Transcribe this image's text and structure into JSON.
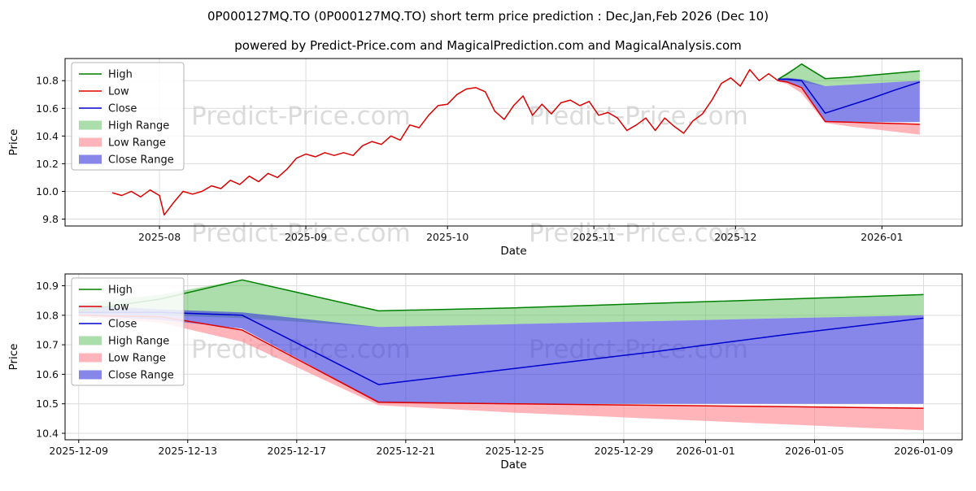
{
  "title": "0P000127MQ.TO (0P000127MQ.TO) short term price prediction : Dec,Jan,Feb 2026 (Dec 10)",
  "subtitle": "powered by Predict-Price.com and MagicalPrediction.com and MagicalAnalysis.com",
  "watermark": "Predict-Price.com",
  "colors": {
    "high_line": "#008000",
    "low_line": "#dd0000",
    "close_line": "#0000cd",
    "high_band": "rgba(90,190,90,0.5)",
    "low_band": "rgba(255,130,140,0.6)",
    "close_band": "rgba(55,55,220,0.6)",
    "grid": "#dcdcdc",
    "watermark": "#bdbdbd"
  },
  "legend": [
    {
      "label": "High",
      "type": "line",
      "color": "#008000"
    },
    {
      "label": "Low",
      "type": "line",
      "color": "#dd0000"
    },
    {
      "label": "Close",
      "type": "line",
      "color": "#0000cd"
    },
    {
      "label": "High Range",
      "type": "band",
      "color": "rgba(90,190,90,0.5)"
    },
    {
      "label": "Low Range",
      "type": "band",
      "color": "rgba(255,130,140,0.6)"
    },
    {
      "label": "Close Range",
      "type": "band",
      "color": "rgba(55,55,220,0.6)"
    }
  ],
  "chart_data": [
    {
      "type": "line",
      "title": "",
      "xlabel": "Date",
      "ylabel": "Price",
      "xlim": [
        "2025-07-12",
        "2026-01-18"
      ],
      "ylim": [
        9.75,
        10.96
      ],
      "yticks": [
        "9.8",
        "10.0",
        "10.2",
        "10.4",
        "10.6",
        "10.8"
      ],
      "xticks": [
        {
          "label": "2025-08",
          "date": "2025-08-01"
        },
        {
          "label": "2025-09",
          "date": "2025-09-01"
        },
        {
          "label": "2025-10",
          "date": "2025-10-01"
        },
        {
          "label": "2025-11",
          "date": "2025-11-01"
        },
        {
          "label": "2025-12",
          "date": "2025-12-01"
        },
        {
          "label": "2026-01",
          "date": "2026-01-01"
        }
      ],
      "series": [
        {
          "name": "High",
          "color": "#008000",
          "x": [
            "2025-12-10",
            "2025-12-12",
            "2025-12-15",
            "2025-12-20",
            "2025-12-25",
            "2025-12-30",
            "2026-01-04",
            "2026-01-09"
          ],
          "values": [
            10.81,
            10.85,
            10.92,
            10.815,
            10.825,
            10.84,
            10.855,
            10.87
          ]
        },
        {
          "name": "Close",
          "color": "#0000cd",
          "x": [
            "2025-12-10",
            "2025-12-12",
            "2025-12-15",
            "2025-12-20",
            "2025-12-25",
            "2025-12-30",
            "2026-01-04",
            "2026-01-09"
          ],
          "values": [
            10.81,
            10.81,
            10.8,
            10.565,
            10.62,
            10.675,
            10.735,
            10.79
          ]
        },
        {
          "name": "Low",
          "color": "#dd0000",
          "x": [
            "2025-07-22",
            "2025-07-24",
            "2025-07-26",
            "2025-07-28",
            "2025-07-30",
            "2025-08-01",
            "2025-08-02",
            "2025-08-04",
            "2025-08-06",
            "2025-08-08",
            "2025-08-10",
            "2025-08-12",
            "2025-08-14",
            "2025-08-16",
            "2025-08-18",
            "2025-08-20",
            "2025-08-22",
            "2025-08-24",
            "2025-08-26",
            "2025-08-28",
            "2025-08-30",
            "2025-09-01",
            "2025-09-03",
            "2025-09-05",
            "2025-09-07",
            "2025-09-09",
            "2025-09-11",
            "2025-09-13",
            "2025-09-15",
            "2025-09-17",
            "2025-09-19",
            "2025-09-21",
            "2025-09-23",
            "2025-09-25",
            "2025-09-27",
            "2025-09-29",
            "2025-10-01",
            "2025-10-03",
            "2025-10-05",
            "2025-10-07",
            "2025-10-09",
            "2025-10-11",
            "2025-10-13",
            "2025-10-15",
            "2025-10-17",
            "2025-10-19",
            "2025-10-21",
            "2025-10-23",
            "2025-10-25",
            "2025-10-27",
            "2025-10-29",
            "2025-10-31",
            "2025-11-02",
            "2025-11-04",
            "2025-11-06",
            "2025-11-08",
            "2025-11-10",
            "2025-11-12",
            "2025-11-14",
            "2025-11-16",
            "2025-11-18",
            "2025-11-20",
            "2025-11-22",
            "2025-11-24",
            "2025-11-26",
            "2025-11-28",
            "2025-11-30",
            "2025-12-02",
            "2025-12-04",
            "2025-12-06",
            "2025-12-08",
            "2025-12-10",
            "2025-12-12",
            "2025-12-15",
            "2025-12-20",
            "2025-12-25",
            "2025-12-30",
            "2026-01-04",
            "2026-01-09"
          ],
          "values": [
            9.99,
            9.97,
            10.0,
            9.96,
            10.01,
            9.97,
            9.83,
            9.92,
            10.0,
            9.98,
            10.0,
            10.04,
            10.02,
            10.08,
            10.05,
            10.11,
            10.07,
            10.13,
            10.1,
            10.16,
            10.24,
            10.27,
            10.25,
            10.28,
            10.26,
            10.28,
            10.26,
            10.33,
            10.36,
            10.34,
            10.4,
            10.37,
            10.48,
            10.46,
            10.55,
            10.62,
            10.63,
            10.7,
            10.74,
            10.75,
            10.72,
            10.58,
            10.52,
            10.62,
            10.69,
            10.55,
            10.63,
            10.56,
            10.64,
            10.66,
            10.62,
            10.65,
            10.55,
            10.57,
            10.53,
            10.44,
            10.48,
            10.53,
            10.44,
            10.53,
            10.47,
            10.42,
            10.51,
            10.56,
            10.66,
            10.78,
            10.82,
            10.76,
            10.88,
            10.8,
            10.85,
            10.8,
            10.79,
            10.75,
            10.505,
            10.5,
            10.495,
            10.49,
            10.485
          ]
        }
      ],
      "bands": [
        {
          "name": "High Range",
          "color": "rgba(90,190,90,0.5)",
          "x": [
            "2025-12-10",
            "2025-12-12",
            "2025-12-15",
            "2025-12-20",
            "2025-12-25",
            "2025-12-30",
            "2026-01-04",
            "2026-01-09"
          ],
          "upper": [
            10.815,
            10.86,
            10.92,
            10.815,
            10.825,
            10.84,
            10.855,
            10.87
          ],
          "lower": [
            10.805,
            10.8,
            10.79,
            10.76,
            10.77,
            10.78,
            10.79,
            10.8
          ]
        },
        {
          "name": "Low Range",
          "color": "rgba(255,130,140,0.6)",
          "x": [
            "2025-12-10",
            "2025-12-12",
            "2025-12-15",
            "2025-12-20",
            "2025-12-25",
            "2025-12-30",
            "2026-01-04",
            "2026-01-09"
          ],
          "upper": [
            10.8,
            10.79,
            10.75,
            10.51,
            10.5,
            10.496,
            10.492,
            10.487
          ],
          "lower": [
            10.795,
            10.775,
            10.71,
            10.495,
            10.47,
            10.45,
            10.43,
            10.41
          ]
        },
        {
          "name": "Close Range",
          "color": "rgba(55,55,220,0.6)",
          "x": [
            "2025-12-10",
            "2025-12-12",
            "2025-12-15",
            "2025-12-20",
            "2025-12-25",
            "2025-12-30",
            "2026-01-04",
            "2026-01-09"
          ],
          "upper": [
            10.815,
            10.82,
            10.81,
            10.76,
            10.77,
            10.78,
            10.79,
            10.8
          ],
          "lower": [
            10.8,
            10.785,
            10.755,
            10.505,
            10.5,
            10.5,
            10.5,
            10.5
          ]
        }
      ]
    },
    {
      "type": "line",
      "title": "",
      "xlabel": "Date",
      "ylabel": "Price",
      "xlim": [
        "2025-12-08T12:00:00Z",
        "2026-01-10T10:00:00Z"
      ],
      "ylim": [
        10.378,
        10.94
      ],
      "yticks": [
        "10.4",
        "10.5",
        "10.6",
        "10.7",
        "10.8",
        "10.9"
      ],
      "xticks": [
        {
          "label": "2025-12-09",
          "date": "2025-12-09"
        },
        {
          "label": "2025-12-13",
          "date": "2025-12-13"
        },
        {
          "label": "2025-12-17",
          "date": "2025-12-17"
        },
        {
          "label": "2025-12-21",
          "date": "2025-12-21"
        },
        {
          "label": "2025-12-25",
          "date": "2025-12-25"
        },
        {
          "label": "2025-12-29",
          "date": "2025-12-29"
        },
        {
          "label": "2026-01-01",
          "date": "2026-01-01"
        },
        {
          "label": "2026-01-05",
          "date": "2026-01-05"
        },
        {
          "label": "2026-01-09",
          "date": "2026-01-09"
        }
      ],
      "series": [
        {
          "name": "High",
          "color": "#008000",
          "x": [
            "2025-12-09",
            "2025-12-12",
            "2025-12-15",
            "2025-12-20",
            "2025-12-25",
            "2025-12-30",
            "2026-01-04",
            "2026-01-09"
          ],
          "values": [
            10.815,
            10.855,
            10.92,
            10.815,
            10.825,
            10.84,
            10.855,
            10.87
          ]
        },
        {
          "name": "Low",
          "color": "#dd0000",
          "x": [
            "2025-12-09",
            "2025-12-12",
            "2025-12-15",
            "2025-12-20",
            "2025-12-25",
            "2025-12-30",
            "2026-01-04",
            "2026-01-09"
          ],
          "values": [
            10.8,
            10.795,
            10.75,
            10.505,
            10.5,
            10.495,
            10.49,
            10.485
          ]
        },
        {
          "name": "Close",
          "color": "#0000cd",
          "x": [
            "2025-12-09",
            "2025-12-12",
            "2025-12-15",
            "2025-12-20",
            "2025-12-25",
            "2025-12-30",
            "2026-01-04",
            "2026-01-09"
          ],
          "values": [
            10.81,
            10.81,
            10.8,
            10.565,
            10.62,
            10.675,
            10.735,
            10.79
          ]
        }
      ],
      "bands": [
        {
          "name": "High Range",
          "color": "rgba(90,190,90,0.5)",
          "x": [
            "2025-12-09",
            "2025-12-12",
            "2025-12-15",
            "2025-12-20",
            "2025-12-25",
            "2025-12-30",
            "2026-01-04",
            "2026-01-09"
          ],
          "upper": [
            10.84,
            10.87,
            10.92,
            10.815,
            10.825,
            10.84,
            10.855,
            10.87
          ],
          "lower": [
            10.805,
            10.8,
            10.79,
            10.76,
            10.77,
            10.78,
            10.79,
            10.8
          ]
        },
        {
          "name": "Low Range",
          "color": "rgba(255,130,140,0.6)",
          "x": [
            "2025-12-09",
            "2025-12-12",
            "2025-12-15",
            "2025-12-20",
            "2025-12-25",
            "2025-12-30",
            "2026-01-04",
            "2026-01-09"
          ],
          "upper": [
            10.8,
            10.79,
            10.75,
            10.51,
            10.5,
            10.496,
            10.492,
            10.487
          ],
          "lower": [
            10.795,
            10.775,
            10.71,
            10.495,
            10.47,
            10.45,
            10.43,
            10.41
          ]
        },
        {
          "name": "Close Range",
          "color": "rgba(55,55,220,0.6)",
          "x": [
            "2025-12-09",
            "2025-12-12",
            "2025-12-15",
            "2025-12-20",
            "2025-12-25",
            "2025-12-30",
            "2026-01-04",
            "2026-01-09"
          ],
          "upper": [
            10.835,
            10.82,
            10.81,
            10.76,
            10.77,
            10.78,
            10.79,
            10.8
          ],
          "lower": [
            10.8,
            10.785,
            10.755,
            10.505,
            10.5,
            10.5,
            10.5,
            10.5
          ]
        }
      ]
    }
  ]
}
